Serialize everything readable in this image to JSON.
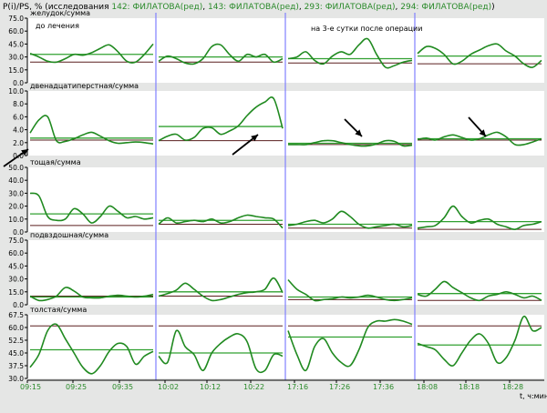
{
  "header": {
    "prefix": "P(i)/PS, %  (исследования ",
    "studies": [
      "142: ФИЛАТОВА(ред)",
      "143: ФИЛАТОВА(ред)",
      "293: ФИЛАТОВА(ред)",
      "294: ФИЛАТОВА(ред)"
    ],
    "suffix": ")"
  },
  "annotations": {
    "before_treatment": "до лечения",
    "after_surgery": "на 3-е сутки после операции"
  },
  "x_unit": "t, ч:мин",
  "colors": {
    "background": "#e5e6e5",
    "plot_bg": "#ffffff",
    "trace": "#208a20",
    "mean_line": "#30a030",
    "baseline": "#5a1f1f",
    "divider": "#8080ff",
    "text": "#000000",
    "green_text": "#2a8a2a"
  },
  "chart_data": {
    "type": "line",
    "study_time_labels": [
      [
        "09:15",
        "09:25",
        "09:35"
      ],
      [
        "10:02",
        "10:12",
        "10:22"
      ],
      [
        "17:16",
        "17:26",
        "17:36"
      ],
      [
        "18:08",
        "18:18",
        "18:28"
      ]
    ],
    "panels": [
      {
        "title": "желудок/сумма",
        "ylim": [
          0,
          75
        ],
        "yticks": [
          "0.0",
          "15.0",
          "30.0",
          "45.0",
          "60.0",
          "75.0"
        ],
        "segments": [
          {
            "baseline": 24,
            "mean": 33,
            "values": [
              34,
              30,
              25,
              24,
              28,
              33,
              32,
              35,
              40,
              44,
              36,
              25,
              24,
              33,
              45
            ]
          },
          {
            "baseline": 24,
            "mean": 30,
            "values": [
              25,
              31,
              28,
              23,
              22,
              28,
              42,
              44,
              33,
              25,
              33,
              30,
              33,
              24,
              28
            ]
          },
          {
            "baseline": 23,
            "mean": 28,
            "values": [
              28,
              30,
              36,
              26,
              22,
              31,
              36,
              33,
              44,
              51,
              33,
              18,
              20,
              24,
              26
            ]
          },
          {
            "baseline": 22,
            "mean": 31,
            "values": [
              34,
              42,
              40,
              33,
              22,
              25,
              33,
              38,
              43,
              45,
              37,
              31,
              22,
              18,
              26
            ]
          }
        ]
      },
      {
        "title": "двенадцатиперстная/сумма",
        "ylim": [
          0,
          10
        ],
        "yticks": [
          "0.0",
          "2.0",
          "4.0",
          "6.0",
          "8.0",
          "10.0"
        ],
        "segments": [
          {
            "baseline": 2.4,
            "mean": 2.7,
            "values": [
              3.5,
              5.5,
              6.0,
              2.3,
              2.2,
              2.6,
              3.2,
              3.6,
              3.0,
              2.3,
              1.9,
              2.0,
              2.1,
              2.0,
              1.8
            ]
          },
          {
            "baseline": 2.3,
            "mean": 4.5,
            "values": [
              2.3,
              3.0,
              3.3,
              2.4,
              2.8,
              4.2,
              4.3,
              3.3,
              3.8,
              4.6,
              6.2,
              7.5,
              8.3,
              8.8,
              4.2
            ]
          },
          {
            "baseline": 1.7,
            "mean": 1.9,
            "values": [
              1.7,
              1.7,
              1.7,
              2.0,
              2.3,
              2.3,
              2.0,
              1.7,
              1.5,
              1.5,
              1.8,
              2.3,
              2.2,
              1.5,
              1.6
            ]
          },
          {
            "baseline": 2.4,
            "mean": 2.6,
            "values": [
              2.5,
              2.7,
              2.4,
              2.9,
              3.2,
              2.8,
              2.4,
              2.6,
              3.2,
              3.6,
              2.9,
              1.7,
              1.7,
              2.1,
              2.6
            ]
          }
        ]
      },
      {
        "title": "тощая/сумма",
        "ylim": [
          0,
          50
        ],
        "yticks": [
          "0.0",
          "10.0",
          "20.0",
          "30.0",
          "40.0",
          "50.0"
        ],
        "segments": [
          {
            "baseline": 5,
            "mean": 14,
            "values": [
              30,
              28,
              12,
              9,
              10,
              18,
              14,
              7,
              12,
              20,
              16,
              11,
              12,
              10,
              11
            ]
          },
          {
            "baseline": 6,
            "mean": 9,
            "values": [
              6,
              11,
              7,
              8,
              9,
              8,
              10,
              7,
              8,
              11,
              13,
              12,
              11,
              10,
              3
            ]
          },
          {
            "baseline": 3,
            "mean": 6,
            "values": [
              5,
              6,
              8,
              9,
              7,
              10,
              16,
              12,
              6,
              3,
              4,
              5,
              6,
              4,
              5
            ]
          },
          {
            "baseline": 2,
            "mean": 8,
            "values": [
              3,
              4,
              5,
              11,
              20,
              12,
              7,
              9,
              10,
              6,
              4,
              2,
              5,
              6,
              8
            ]
          }
        ]
      },
      {
        "title": "подвздошная/сумма",
        "ylim": [
          0,
          75
        ],
        "yticks": [
          "0.0",
          "15.0",
          "30.0",
          "45.0",
          "60.0",
          "75.0"
        ],
        "segments": [
          {
            "baseline": 10,
            "mean": 9,
            "values": [
              10,
              5,
              6,
              10,
              20,
              16,
              9,
              8,
              8,
              10,
              11,
              10,
              9,
              10,
              12
            ]
          },
          {
            "baseline": 10,
            "mean": 15,
            "values": [
              10,
              13,
              17,
              25,
              18,
              10,
              5,
              6,
              9,
              12,
              14,
              15,
              18,
              31,
              14
            ]
          },
          {
            "baseline": 6,
            "mean": 9,
            "values": [
              29,
              18,
              12,
              5,
              6,
              7,
              9,
              8,
              9,
              11,
              9,
              6,
              5,
              6,
              8
            ]
          },
          {
            "baseline": 5,
            "mean": 13,
            "values": [
              12,
              10,
              18,
              27,
              20,
              14,
              8,
              5,
              10,
              12,
              15,
              12,
              8,
              10,
              5
            ]
          }
        ]
      },
      {
        "title": "толстая/сумма",
        "ylim": [
          30,
          70
        ],
        "yticks": [
          "30.0",
          "37.5",
          "45.0",
          "52.5",
          "60.0",
          "67.5"
        ],
        "segments": [
          {
            "baseline": 63,
            "mean": 48,
            "values": [
              37,
              45,
              60,
              64,
              55,
              46,
              37,
              33,
              38,
              47,
              52,
              50,
              39,
              44,
              47
            ]
          },
          {
            "baseline": 63,
            "mean": 46,
            "values": [
              44,
              40,
              60,
              50,
              45,
              35,
              46,
              52,
              56,
              58,
              53,
              36,
              35,
              45,
              44
            ]
          },
          {
            "baseline": 63,
            "mean": 56,
            "values": [
              60,
              45,
              35,
              50,
              55,
              46,
              40,
              38,
              48,
              62,
              66,
              66,
              67,
              66,
              64
            ]
          },
          {
            "baseline": 63,
            "mean": 51,
            "values": [
              52,
              50,
              48,
              42,
              38,
              46,
              54,
              58,
              52,
              40,
              43,
              54,
              69,
              60,
              62
            ]
          }
        ]
      }
    ]
  }
}
